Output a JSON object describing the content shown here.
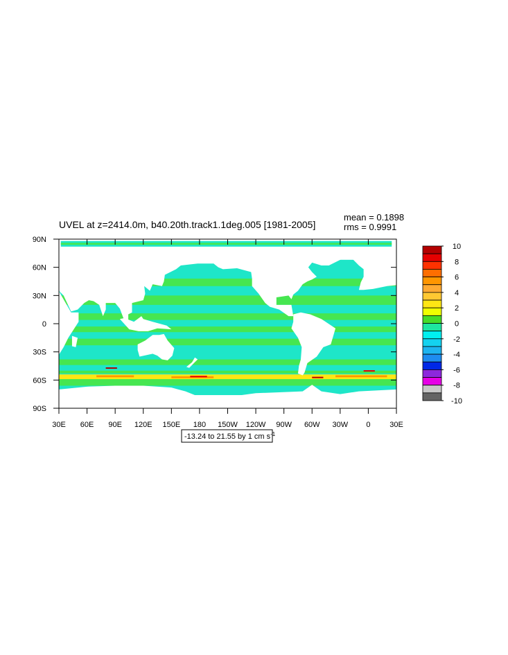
{
  "title": "UVEL at z=2414.0m, b40.20th.track1.1deg.005 [1981-2005]",
  "stats": [
    "mean = 0.1898",
    "rms = 0.9991"
  ],
  "xlim": [
    30,
    390
  ],
  "xticks": [
    {
      "value": 30,
      "label": "30E"
    },
    {
      "value": 60,
      "label": "60E"
    },
    {
      "value": 90,
      "label": "90E"
    },
    {
      "value": 120,
      "label": "120E"
    },
    {
      "value": 150,
      "label": "150E"
    },
    {
      "value": 180,
      "label": "180"
    },
    {
      "value": 210,
      "label": "150W"
    },
    {
      "value": 240,
      "label": "120W"
    },
    {
      "value": 270,
      "label": "90W"
    },
    {
      "value": 300,
      "label": "60W"
    },
    {
      "value": 330,
      "label": "30W"
    },
    {
      "value": 360,
      "label": "0"
    },
    {
      "value": 390,
      "label": "30E"
    }
  ],
  "ylim": [
    -90,
    90
  ],
  "yticks": [
    {
      "value": 90,
      "label": "90N"
    },
    {
      "value": 60,
      "label": "60N"
    },
    {
      "value": 30,
      "label": "30N"
    },
    0,
    {
      "value": -30,
      "label": "30S"
    },
    {
      "value": -60,
      "label": "60S"
    },
    {
      "value": -90,
      "label": "90S"
    }
  ],
  "colorbar": {
    "labels": [
      10,
      8,
      6,
      4,
      2,
      0,
      -2,
      -4,
      -6,
      -8,
      -10
    ],
    "colors": [
      "#b40000",
      "#e60000",
      "#ff3200",
      "#ff6e00",
      "#ff9600",
      "#ffaa32",
      "#ffc832",
      "#ffe614",
      "#f0ff00",
      "#46dc28",
      "#1ee6a0",
      "#00f0f0",
      "#14d2f0",
      "#1eb4f0",
      "#1e8cf0",
      "#0028e6",
      "#8c28dc",
      "#e600e6",
      "#c8c8c8",
      "#646464"
    ]
  },
  "info_box": {
    "text": "-13.24 to 21.55 by 1 cm s",
    "superscript": "-1"
  }
}
